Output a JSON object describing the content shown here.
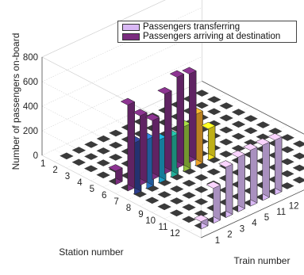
{
  "chart_data": {
    "type": "bar3d",
    "xlabel": "Train number",
    "ylabel": "Station number",
    "zlabel": "Number of passengers on-board",
    "x_ticks": [
      "1",
      "2",
      "3",
      "4",
      "5",
      "11",
      "12"
    ],
    "y_ticks": [
      "1",
      "2",
      "3",
      "4",
      "5",
      "6",
      "7",
      "8",
      "9",
      "10",
      "11",
      "12"
    ],
    "z_ticks": [
      "0",
      "200",
      "400",
      "600",
      "800"
    ],
    "zlim": [
      0,
      800
    ],
    "grid": true,
    "legend_position": "top-right",
    "series": [
      {
        "name": "Passengers transferring",
        "color": "#d9b8f5",
        "bars": [
          {
            "train": 1,
            "station": 12,
            "value": 60
          },
          {
            "train": 2,
            "station": 12,
            "value": 285
          },
          {
            "train": 3,
            "station": 12,
            "value": 410
          },
          {
            "train": 4,
            "station": 12,
            "value": 445
          },
          {
            "train": 5,
            "station": 12,
            "value": 455
          },
          {
            "train": 11,
            "station": 12,
            "value": 450
          },
          {
            "train": 12,
            "station": 12,
            "value": 445
          }
        ]
      },
      {
        "name": "Passengers arriving at destination",
        "color": "#7b2d7f",
        "bars": [
          {
            "train": 1,
            "station": 5,
            "value": 110
          },
          {
            "train": 1,
            "station": 6,
            "value": 700
          },
          {
            "train": 2,
            "station": 6,
            "value": 565
          },
          {
            "train": 3,
            "station": 6,
            "value": 480
          },
          {
            "train": 4,
            "station": 6,
            "value": 650
          },
          {
            "train": 5,
            "station": 6,
            "value": 740
          },
          {
            "train": 11,
            "station": 6,
            "value": 720
          }
        ]
      },
      {
        "name": "",
        "color": "multicolor",
        "bars": [
          {
            "train": 1,
            "station": 6,
            "value": 420,
            "color": "#2e3f8f"
          },
          {
            "train": 2,
            "station": 6,
            "value": 400,
            "color": "#2a73c5"
          },
          {
            "train": 3,
            "station": 6,
            "value": 350,
            "color": "#1b9fc6"
          },
          {
            "train": 4,
            "station": 6,
            "value": 330,
            "color": "#21b09a"
          },
          {
            "train": 5,
            "station": 6,
            "value": 365,
            "color": "#93c23e"
          },
          {
            "train": 11,
            "station": 6,
            "value": 420,
            "color": "#f0a52a"
          },
          {
            "train": 12,
            "station": 6,
            "value": 255,
            "color": "#f5e21e"
          }
        ]
      }
    ]
  }
}
